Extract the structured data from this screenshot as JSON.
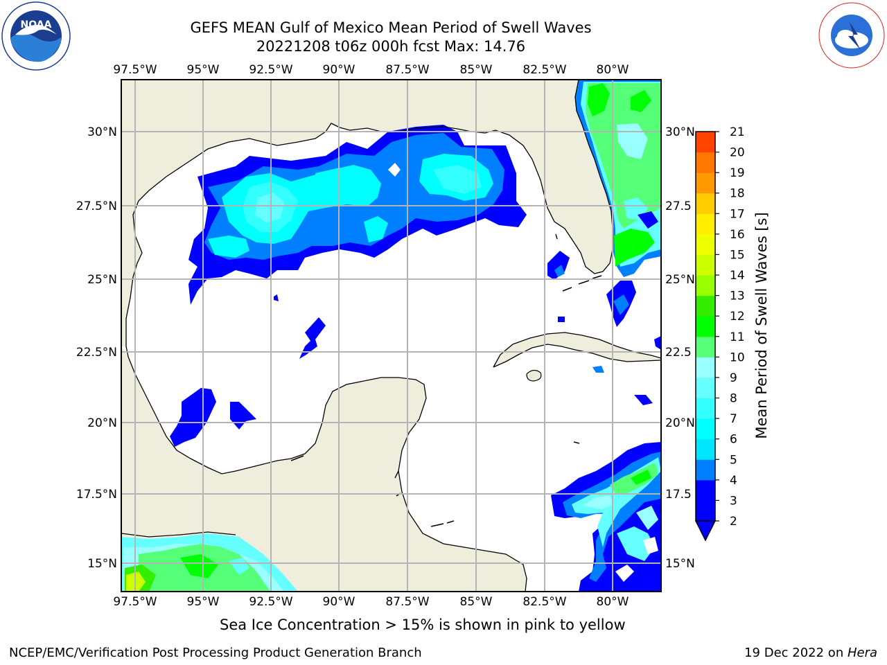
{
  "header": {
    "title": "GEFS MEAN Gulf of Mexico Mean Period of Swell Waves",
    "subtitle": "20221208 t06z 000h fcst   Max: 14.76"
  },
  "logos": {
    "left": {
      "name": "NOAA",
      "ring_text": "NATIONAL OCEANIC AND ATMOSPHERIC ADMINISTRATION · U.S. DEPARTMENT OF COMMERCE"
    },
    "right": {
      "name": "NATIONAL WEATHER SERVICE"
    }
  },
  "map": {
    "lon_ticks": [
      "97.5°W",
      "95°W",
      "92.5°W",
      "90°W",
      "87.5°W",
      "85°W",
      "82.5°W",
      "80°W"
    ],
    "lat_ticks_left": [
      "30°N",
      "27.5°N",
      "25°N",
      "22.5°N",
      "20°N",
      "17.5°N",
      "15°N"
    ],
    "lat_ticks_right": [
      "30°N",
      "27.5",
      "25°N",
      "22.5",
      "20°N",
      "17.5",
      "15°N"
    ]
  },
  "colorbar": {
    "label": "Mean Period of Swell Waves [s]",
    "ticks": [
      "21",
      "20",
      "19",
      "18",
      "17",
      "16",
      "15",
      "14",
      "13",
      "12",
      "11",
      "10",
      "9",
      "8",
      "7",
      "6",
      "5",
      "4",
      "3",
      "2"
    ],
    "colors": {
      "2": "#0000ff",
      "4": "#0080ff",
      "5": "#00e6ff",
      "6": "#00ffff",
      "7": "#33ffff",
      "8": "#66ffff",
      "9": "#99ffff",
      "10": "#55ff77",
      "11": "#00ff00",
      "12": "#33ee00",
      "13": "#99ff00",
      "14": "#ccff00",
      "15": "#eeff00",
      "16": "#ffee00",
      "17": "#ffcc00",
      "18": "#ff9900",
      "19": "#ff7700",
      "20": "#ff4400",
      "21": "#ff1100"
    },
    "land_color": "#efeedd",
    "grid_color": "#b4b4b4"
  },
  "caption": "Sea Ice Concentration > 15% is shown in pink to yellow",
  "footer": {
    "left": "NCEP/EMC/Verification Post Processing Product Generation Branch",
    "right_prefix": "19 Dec 2022 on ",
    "right_host": "Hera"
  }
}
